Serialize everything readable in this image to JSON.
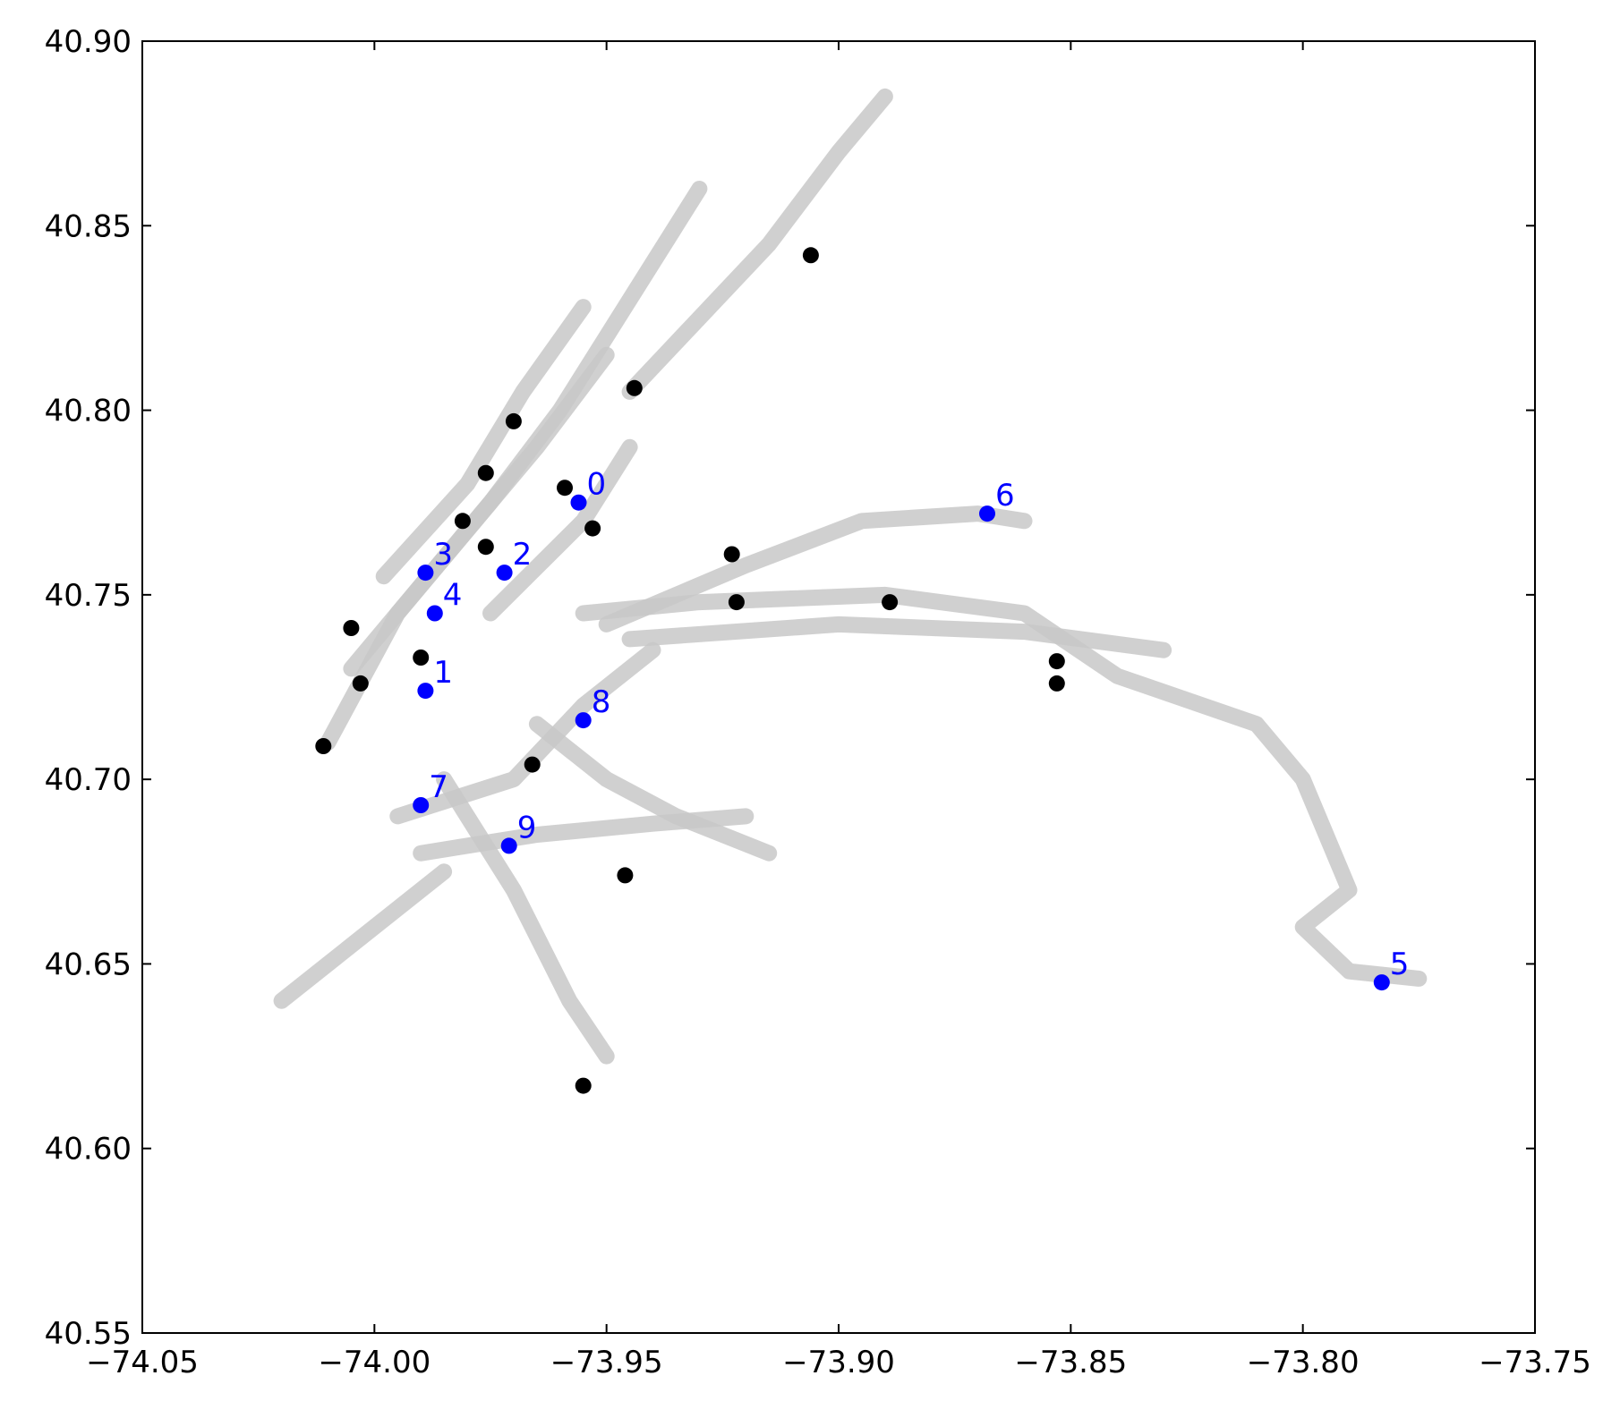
{
  "chart_data": {
    "type": "scatter",
    "title": "",
    "xlabel": "",
    "ylabel": "",
    "xlim": [
      -74.05,
      -73.75
    ],
    "ylim": [
      40.55,
      40.9
    ],
    "xticks": [
      {
        "value": -74.05,
        "label": "−74.05"
      },
      {
        "value": -74.0,
        "label": "−74.00"
      },
      {
        "value": -73.95,
        "label": "−73.95"
      },
      {
        "value": -73.9,
        "label": "−73.90"
      },
      {
        "value": -73.85,
        "label": "−73.85"
      },
      {
        "value": -73.8,
        "label": "−73.80"
      },
      {
        "value": -73.75,
        "label": "−73.75"
      }
    ],
    "yticks": [
      {
        "value": 40.55,
        "label": "40.55"
      },
      {
        "value": 40.6,
        "label": "40.60"
      },
      {
        "value": 40.65,
        "label": "40.65"
      },
      {
        "value": 40.7,
        "label": "40.70"
      },
      {
        "value": 40.75,
        "label": "40.75"
      },
      {
        "value": 40.8,
        "label": "40.80"
      },
      {
        "value": 40.85,
        "label": "40.85"
      },
      {
        "value": 40.9,
        "label": "40.90"
      }
    ],
    "grid": false,
    "legend": "none",
    "colors": {
      "background_points": "#c8c8c8",
      "black_points": "#000000",
      "labeled_points": "#0000ff"
    },
    "background_tracks": [
      [
        [
          -74.01,
          40.71
        ],
        [
          -73.995,
          40.745
        ],
        [
          -73.975,
          40.775
        ],
        [
          -73.96,
          40.8
        ],
        [
          -73.945,
          40.83
        ],
        [
          -73.93,
          40.86
        ]
      ],
      [
        [
          -74.005,
          40.73
        ],
        [
          -73.985,
          40.76
        ],
        [
          -73.965,
          40.79
        ],
        [
          -73.95,
          40.815
        ]
      ],
      [
        [
          -73.998,
          40.755
        ],
        [
          -73.98,
          40.78
        ],
        [
          -73.968,
          40.805
        ],
        [
          -73.955,
          40.828
        ]
      ],
      [
        [
          -73.975,
          40.745
        ],
        [
          -73.955,
          40.77
        ],
        [
          -73.945,
          40.79
        ]
      ],
      [
        [
          -73.945,
          40.805
        ],
        [
          -73.93,
          40.825
        ],
        [
          -73.915,
          40.845
        ],
        [
          -73.9,
          40.87
        ],
        [
          -73.89,
          40.885
        ]
      ],
      [
        [
          -73.955,
          40.745
        ],
        [
          -73.93,
          40.748
        ],
        [
          -73.89,
          40.75
        ],
        [
          -73.86,
          40.745
        ],
        [
          -73.84,
          40.728
        ],
        [
          -73.81,
          40.715
        ],
        [
          -73.8,
          40.7
        ],
        [
          -73.79,
          40.67
        ],
        [
          -73.8,
          40.66
        ],
        [
          -73.79,
          40.648
        ],
        [
          -73.775,
          40.646
        ]
      ],
      [
        [
          -73.95,
          40.742
        ],
        [
          -73.92,
          40.758
        ],
        [
          -73.895,
          40.77
        ],
        [
          -73.87,
          40.772
        ],
        [
          -73.86,
          40.77
        ]
      ],
      [
        [
          -73.945,
          40.738
        ],
        [
          -73.9,
          40.742
        ],
        [
          -73.86,
          40.74
        ],
        [
          -73.83,
          40.735
        ]
      ],
      [
        [
          -73.995,
          40.69
        ],
        [
          -73.97,
          40.7
        ],
        [
          -73.955,
          40.72
        ],
        [
          -73.94,
          40.735
        ]
      ],
      [
        [
          -73.99,
          40.68
        ],
        [
          -73.965,
          40.685
        ],
        [
          -73.94,
          40.688
        ],
        [
          -73.92,
          40.69
        ]
      ],
      [
        [
          -73.985,
          40.7
        ],
        [
          -73.97,
          40.67
        ],
        [
          -73.958,
          40.64
        ],
        [
          -73.95,
          40.625
        ]
      ],
      [
        [
          -74.02,
          40.64
        ],
        [
          -74.0,
          40.66
        ],
        [
          -73.985,
          40.675
        ]
      ],
      [
        [
          -73.965,
          40.715
        ],
        [
          -73.95,
          40.7
        ],
        [
          -73.935,
          40.69
        ],
        [
          -73.915,
          40.68
        ]
      ]
    ],
    "series": [
      {
        "color": "#000000",
        "points": [
          {
            "x": -73.906,
            "y": 40.842
          },
          {
            "x": -73.944,
            "y": 40.806
          },
          {
            "x": -73.97,
            "y": 40.797
          },
          {
            "x": -73.976,
            "y": 40.783
          },
          {
            "x": -73.959,
            "y": 40.779
          },
          {
            "x": -73.981,
            "y": 40.77
          },
          {
            "x": -73.953,
            "y": 40.768
          },
          {
            "x": -73.976,
            "y": 40.763
          },
          {
            "x": -73.923,
            "y": 40.761
          },
          {
            "x": -73.922,
            "y": 40.748
          },
          {
            "x": -73.889,
            "y": 40.748
          },
          {
            "x": -74.005,
            "y": 40.741
          },
          {
            "x": -73.99,
            "y": 40.733
          },
          {
            "x": -73.853,
            "y": 40.732
          },
          {
            "x": -74.003,
            "y": 40.726
          },
          {
            "x": -73.853,
            "y": 40.726
          },
          {
            "x": -74.011,
            "y": 40.709
          },
          {
            "x": -73.966,
            "y": 40.704
          },
          {
            "x": -73.946,
            "y": 40.674
          },
          {
            "x": -73.955,
            "y": 40.617
          }
        ]
      },
      {
        "color": "#0000ff",
        "points": [
          {
            "x": -73.956,
            "y": 40.775,
            "label": "0"
          },
          {
            "x": -73.989,
            "y": 40.724,
            "label": "1"
          },
          {
            "x": -73.972,
            "y": 40.756,
            "label": "2"
          },
          {
            "x": -73.989,
            "y": 40.756,
            "label": "3"
          },
          {
            "x": -73.987,
            "y": 40.745,
            "label": "4"
          },
          {
            "x": -73.783,
            "y": 40.645,
            "label": "5"
          },
          {
            "x": -73.868,
            "y": 40.772,
            "label": "6"
          },
          {
            "x": -73.99,
            "y": 40.693,
            "label": "7"
          },
          {
            "x": -73.955,
            "y": 40.716,
            "label": "8"
          },
          {
            "x": -73.971,
            "y": 40.682,
            "label": "9"
          }
        ]
      }
    ]
  }
}
